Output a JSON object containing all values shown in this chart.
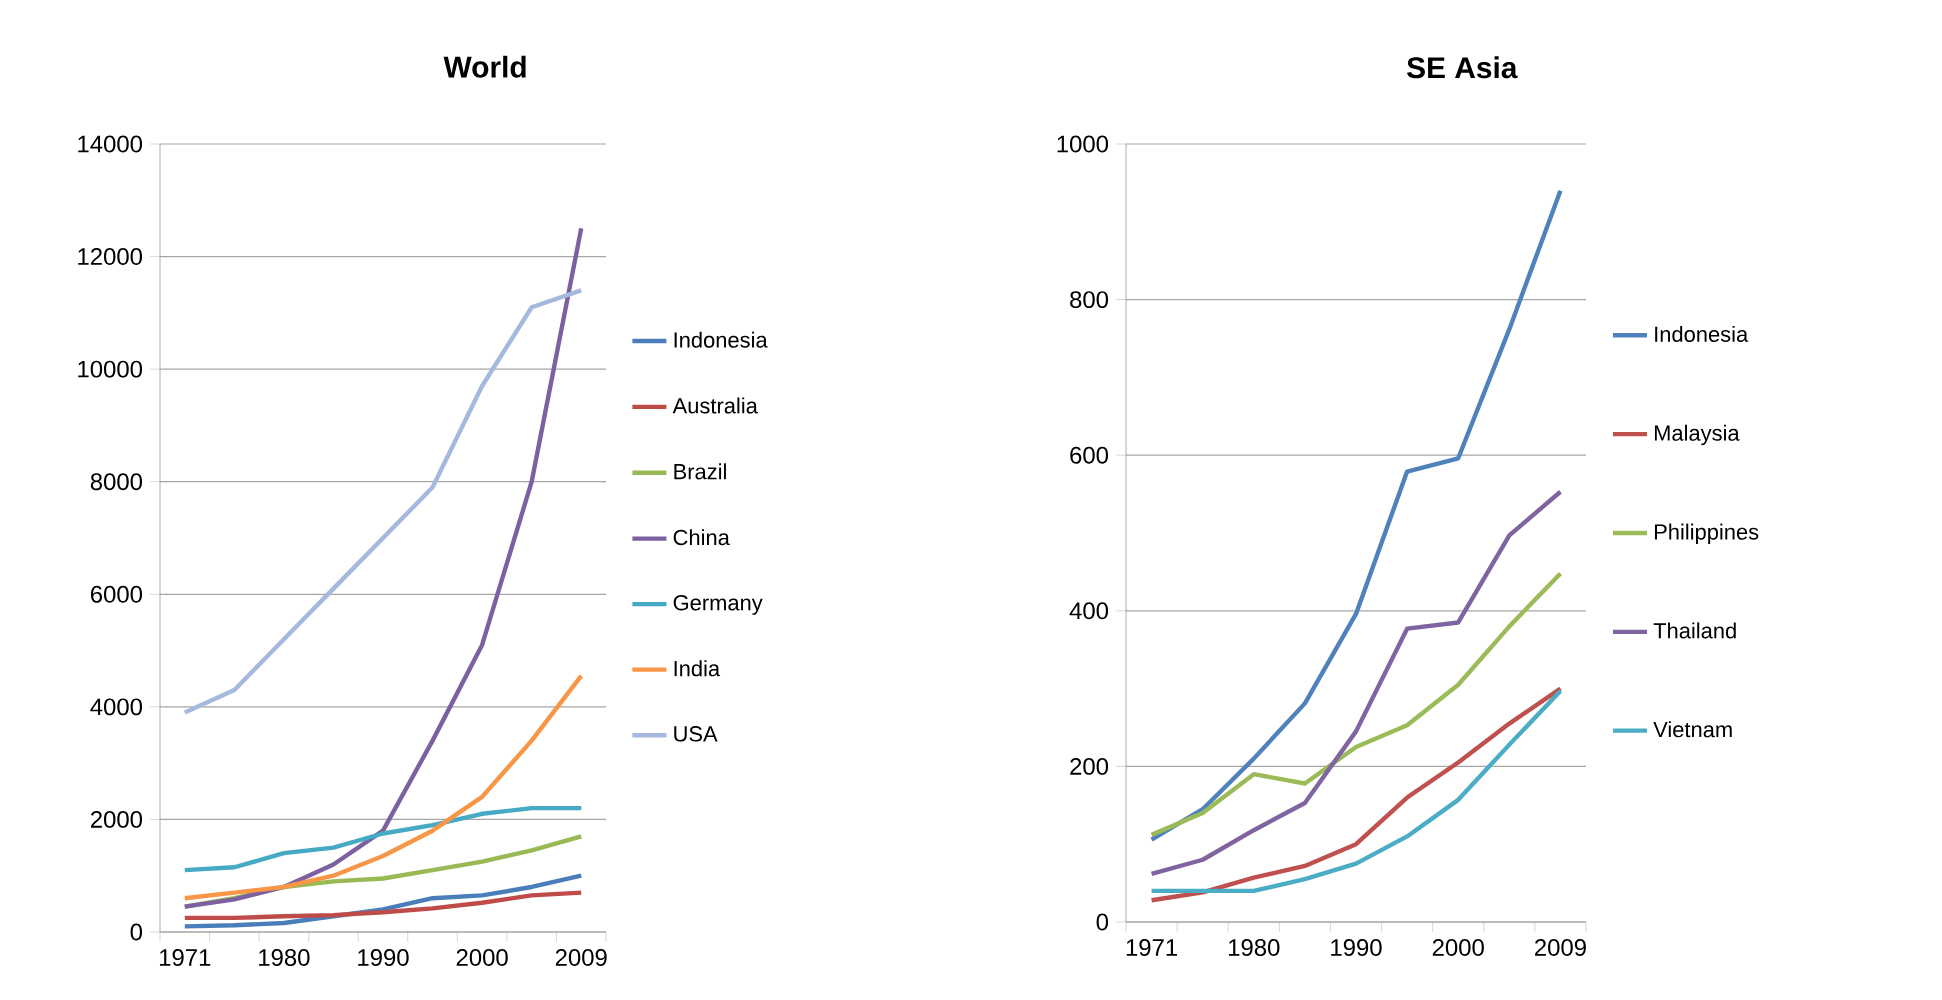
{
  "chart_data": [
    {
      "type": "line",
      "title": "World",
      "categories": [
        "1971",
        null,
        "1980",
        null,
        "1990",
        null,
        "2000",
        null,
        "2009"
      ],
      "ylim": [
        0,
        14000
      ],
      "yticks": [
        0,
        2000,
        4000,
        6000,
        8000,
        10000,
        12000,
        14000
      ],
      "grid": "y",
      "legend": "right",
      "series": [
        {
          "name": "Indonesia",
          "color": "#4a7ebb",
          "values": [
            100,
            120,
            160,
            280,
            400,
            600,
            650,
            800,
            1000
          ]
        },
        {
          "name": "Australia",
          "color": "#be4b48",
          "values": [
            250,
            250,
            280,
            300,
            350,
            420,
            520,
            650,
            700
          ]
        },
        {
          "name": "Brazil",
          "color": "#98b954",
          "values": [
            450,
            600,
            800,
            900,
            950,
            1100,
            1250,
            1450,
            1700
          ]
        },
        {
          "name": "China",
          "color": "#7d60a0",
          "values": [
            450,
            580,
            800,
            1200,
            1800,
            3400,
            5100,
            8000,
            12500
          ]
        },
        {
          "name": "Germany",
          "color": "#46aac5",
          "values": [
            1100,
            1150,
            1400,
            1500,
            1750,
            1900,
            2100,
            2200,
            2200
          ]
        },
        {
          "name": "India",
          "color": "#f79646",
          "values": [
            600,
            700,
            800,
            1000,
            1350,
            1800,
            2400,
            3400,
            4550
          ]
        },
        {
          "name": "USA",
          "color": "#a5b8dd",
          "values": [
            3900,
            4300,
            5200,
            6100,
            7000,
            7900,
            9700,
            11100,
            11400
          ]
        }
      ]
    },
    {
      "type": "line",
      "title": "SE Asia",
      "categories": [
        "1971",
        null,
        "1980",
        null,
        "1990",
        null,
        "2000",
        null,
        "2009"
      ],
      "ylim": [
        0,
        1000
      ],
      "yticks": [
        0,
        200,
        400,
        600,
        800,
        1000
      ],
      "grid": "y",
      "legend": "right",
      "series": [
        {
          "name": "Indonesia",
          "color": "#4f81bd",
          "values": [
            106,
            145,
            210,
            281,
            396,
            579,
            596,
            762,
            940
          ]
        },
        {
          "name": "Malaysia",
          "color": "#c0504d",
          "values": [
            28,
            38,
            57,
            72,
            100,
            160,
            205,
            255,
            300
          ]
        },
        {
          "name": "Philippines",
          "color": "#9bbb59",
          "values": [
            112,
            140,
            190,
            178,
            225,
            253,
            305,
            380,
            448
          ]
        },
        {
          "name": "Thailand",
          "color": "#8064a2",
          "values": [
            62,
            80,
            118,
            153,
            245,
            377,
            385,
            497,
            553
          ]
        },
        {
          "name": "Vietnam",
          "color": "#4bacc6",
          "values": [
            40,
            40,
            40,
            55,
            75,
            110,
            157,
            228,
            297
          ]
        }
      ]
    }
  ]
}
